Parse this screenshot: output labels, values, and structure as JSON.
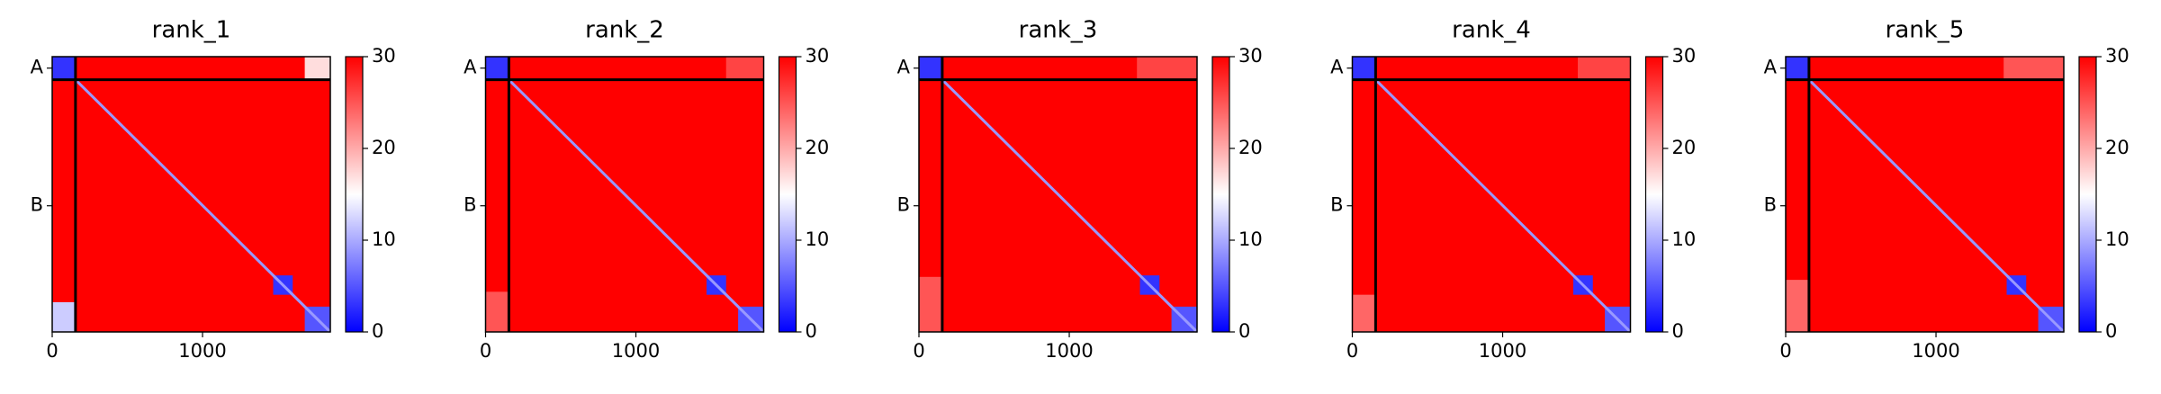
{
  "chart_data": [
    {
      "type": "heatmap",
      "title": "rank_1",
      "xlim": [
        0,
        1850
      ],
      "ylim": [
        0,
        1850
      ],
      "xticks": [
        0,
        1000
      ],
      "yticks": [
        {
          "value": 77,
          "label": "A"
        },
        {
          "value": 1002,
          "label": "B"
        }
      ],
      "clim": [
        0,
        30
      ],
      "cticks": [
        0,
        10,
        20,
        30
      ],
      "colormap": [
        "#0000ff",
        "#ffffff",
        "#ff0000"
      ],
      "chain_breaks": [
        155
      ],
      "diagonal": 9,
      "cells": [
        {
          "x": [
            0,
            1850
          ],
          "y": [
            0,
            1850
          ],
          "value": 30
        },
        {
          "x": [
            0,
            155
          ],
          "y": [
            0,
            155
          ],
          "value": 3
        },
        {
          "x": [
            1680,
            1850
          ],
          "y": [
            0,
            155
          ],
          "value": 17
        },
        {
          "x": [
            0,
            155
          ],
          "y": [
            1650,
            1850
          ],
          "value": 12
        },
        {
          "x": [
            1470,
            1600
          ],
          "y": [
            1470,
            1600
          ],
          "value": 3
        },
        {
          "x": [
            1680,
            1850
          ],
          "y": [
            1680,
            1850
          ],
          "value": 5
        }
      ]
    },
    {
      "type": "heatmap",
      "title": "rank_2",
      "xlim": [
        0,
        1850
      ],
      "ylim": [
        0,
        1850
      ],
      "xticks": [
        0,
        1000
      ],
      "yticks": [
        {
          "value": 77,
          "label": "A"
        },
        {
          "value": 1002,
          "label": "B"
        }
      ],
      "clim": [
        0,
        30
      ],
      "cticks": [
        0,
        10,
        20,
        30
      ],
      "colormap": [
        "#0000ff",
        "#ffffff",
        "#ff0000"
      ],
      "chain_breaks": [
        155
      ],
      "diagonal": 9,
      "cells": [
        {
          "x": [
            0,
            1850
          ],
          "y": [
            0,
            1850
          ],
          "value": 30
        },
        {
          "x": [
            0,
            155
          ],
          "y": [
            0,
            155
          ],
          "value": 3
        },
        {
          "x": [
            1600,
            1850
          ],
          "y": [
            0,
            155
          ],
          "value": 26
        },
        {
          "x": [
            0,
            155
          ],
          "y": [
            1580,
            1850
          ],
          "value": 25
        },
        {
          "x": [
            1470,
            1600
          ],
          "y": [
            1470,
            1600
          ],
          "value": 3
        },
        {
          "x": [
            1680,
            1850
          ],
          "y": [
            1680,
            1850
          ],
          "value": 5
        }
      ]
    },
    {
      "type": "heatmap",
      "title": "rank_3",
      "xlim": [
        0,
        1850
      ],
      "ylim": [
        0,
        1850
      ],
      "xticks": [
        0,
        1000
      ],
      "yticks": [
        {
          "value": 77,
          "label": "A"
        },
        {
          "value": 1002,
          "label": "B"
        }
      ],
      "clim": [
        0,
        30
      ],
      "cticks": [
        0,
        10,
        20,
        30
      ],
      "colormap": [
        "#0000ff",
        "#ffffff",
        "#ff0000"
      ],
      "chain_breaks": [
        155
      ],
      "diagonal": 9,
      "cells": [
        {
          "x": [
            0,
            1850
          ],
          "y": [
            0,
            1850
          ],
          "value": 30
        },
        {
          "x": [
            0,
            155
          ],
          "y": [
            0,
            155
          ],
          "value": 3
        },
        {
          "x": [
            1450,
            1850
          ],
          "y": [
            0,
            155
          ],
          "value": 26
        },
        {
          "x": [
            0,
            155
          ],
          "y": [
            1480,
            1850
          ],
          "value": 25
        },
        {
          "x": [
            1470,
            1600
          ],
          "y": [
            1470,
            1600
          ],
          "value": 3
        },
        {
          "x": [
            1680,
            1850
          ],
          "y": [
            1680,
            1850
          ],
          "value": 5
        }
      ]
    },
    {
      "type": "heatmap",
      "title": "rank_4",
      "xlim": [
        0,
        1850
      ],
      "ylim": [
        0,
        1850
      ],
      "xticks": [
        0,
        1000
      ],
      "yticks": [
        {
          "value": 77,
          "label": "A"
        },
        {
          "value": 1002,
          "label": "B"
        }
      ],
      "clim": [
        0,
        30
      ],
      "cticks": [
        0,
        10,
        20,
        30
      ],
      "colormap": [
        "#0000ff",
        "#ffffff",
        "#ff0000"
      ],
      "chain_breaks": [
        155
      ],
      "diagonal": 9,
      "cells": [
        {
          "x": [
            0,
            1850
          ],
          "y": [
            0,
            1850
          ],
          "value": 30
        },
        {
          "x": [
            0,
            155
          ],
          "y": [
            0,
            155
          ],
          "value": 3
        },
        {
          "x": [
            1500,
            1850
          ],
          "y": [
            0,
            155
          ],
          "value": 26
        },
        {
          "x": [
            0,
            155
          ],
          "y": [
            1600,
            1850
          ],
          "value": 24
        },
        {
          "x": [
            1470,
            1600
          ],
          "y": [
            1470,
            1600
          ],
          "value": 3
        },
        {
          "x": [
            1680,
            1850
          ],
          "y": [
            1680,
            1850
          ],
          "value": 5
        }
      ]
    },
    {
      "type": "heatmap",
      "title": "rank_5",
      "xlim": [
        0,
        1850
      ],
      "ylim": [
        0,
        1850
      ],
      "xticks": [
        0,
        1000
      ],
      "yticks": [
        {
          "value": 77,
          "label": "A"
        },
        {
          "value": 1002,
          "label": "B"
        }
      ],
      "clim": [
        0,
        30
      ],
      "cticks": [
        0,
        10,
        20,
        30
      ],
      "colormap": [
        "#0000ff",
        "#ffffff",
        "#ff0000"
      ],
      "chain_breaks": [
        155
      ],
      "diagonal": 9,
      "cells": [
        {
          "x": [
            0,
            1850
          ],
          "y": [
            0,
            1850
          ],
          "value": 30
        },
        {
          "x": [
            0,
            155
          ],
          "y": [
            0,
            155
          ],
          "value": 3
        },
        {
          "x": [
            1450,
            1850
          ],
          "y": [
            0,
            155
          ],
          "value": 25
        },
        {
          "x": [
            0,
            155
          ],
          "y": [
            1500,
            1850
          ],
          "value": 24
        },
        {
          "x": [
            1470,
            1600
          ],
          "y": [
            1470,
            1600
          ],
          "value": 3
        },
        {
          "x": [
            1680,
            1850
          ],
          "y": [
            1680,
            1850
          ],
          "value": 5
        }
      ]
    }
  ]
}
